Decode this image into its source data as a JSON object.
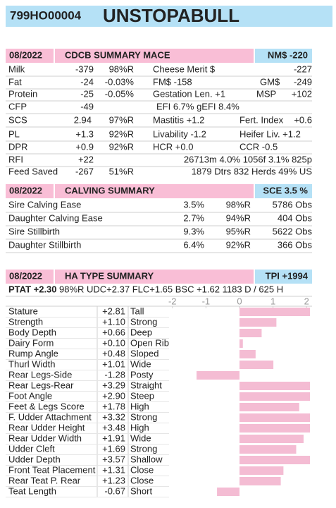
{
  "header": {
    "id": "799HO00004",
    "name": "UNSTOPABULL"
  },
  "cdcb": {
    "date": "08/2022",
    "title": "CDCB SUMMARY MACE",
    "badge": "NM$ -220",
    "rows": [
      [
        "Milk",
        "-379",
        "98%R",
        "Cheese Merit $",
        "-227"
      ],
      [
        "Fat",
        "-24",
        "-0.03%",
        "FM$ -158",
        "GM$",
        "-249"
      ],
      [
        "Protein",
        "-25",
        "-0.05%",
        "Gestation Len. +1",
        "MSP",
        "+102"
      ],
      [
        "CFP",
        "-49",
        "EFI  6.7%  gEFI  8.4%"
      ],
      [
        "SCS",
        "2.94",
        "97%R",
        "Mastitis  +1.2",
        "Fert. Index",
        "+0.6"
      ],
      [
        "PL",
        "+1.3",
        "92%R",
        "Livability  -1.2",
        "Heifer Liv.  +1.2"
      ],
      [
        "DPR",
        "+0.9",
        "92%R",
        "HCR  +0.0",
        "CCR  -0.5"
      ],
      [
        "RFI",
        "+22",
        "26713m  4.0%  1056f  3.1%  825p"
      ],
      [
        "Feed Saved",
        "-267",
        "51%R",
        "1879 Dtrs  832 Herds  49% US"
      ]
    ]
  },
  "calving": {
    "date": "08/2022",
    "title": "CALVING SUMMARY",
    "badge": "SCE 3.5 %",
    "rows": [
      [
        "Sire Calving Ease",
        "3.5%",
        "98%R",
        "5786 Obs"
      ],
      [
        "Daughter Calving Ease",
        "2.7%",
        "94%R",
        "404 Obs"
      ],
      [
        "Sire Stillbirth",
        "9.3%",
        "95%R",
        "5622 Obs"
      ],
      [
        "Daughter Stillbirth",
        "6.4%",
        "92%R",
        "366 Obs"
      ]
    ]
  },
  "type": {
    "date": "08/2022",
    "title": "HA TYPE SUMMARY",
    "badge": "TPI +1994",
    "ptat": "PTAT +2.30",
    "ptat_detail": "98%R  UDC+2.37  FLC+1.65  BSC +1.62  1183 D /  625 H",
    "chart": {
      "xlim": [
        -2.1,
        2.1
      ],
      "xticks": [
        -2,
        -1,
        0,
        1,
        2
      ],
      "color": "#f4bcd3",
      "traits": [
        "Stature",
        "Strength",
        "Body Depth",
        "Dairy Form",
        "Rump Angle",
        "Thurl Width",
        "Rear Legs-Side",
        "Rear Legs-Rear",
        "Foot Angle",
        "Feet & Legs Score",
        "F. Udder Attachment",
        "Rear Udder Height",
        "Rear Udder Width",
        "Udder Cleft",
        "Udder Depth",
        "Front Teat Placement",
        "Rear Teat P. Rear",
        "Teat Length"
      ],
      "values": [
        2.81,
        1.1,
        0.66,
        0.1,
        0.48,
        1.01,
        -1.28,
        3.29,
        2.9,
        1.78,
        3.32,
        3.48,
        1.91,
        1.69,
        3.57,
        1.31,
        1.23,
        -0.67
      ],
      "value_labels": [
        "+2.81",
        "+1.10",
        "+0.66",
        "+0.10",
        "+0.48",
        "+1.01",
        "-1.28",
        "+3.29",
        "+2.90",
        "+1.78",
        "+3.32",
        "+3.48",
        "+1.91",
        "+1.69",
        "+3.57",
        "+1.31",
        "+1.23",
        "-0.67"
      ],
      "descriptors": [
        "Tall",
        "Strong",
        "Deep",
        "Open Rib",
        "Sloped",
        "Wide",
        "Posty",
        "Straight",
        "Steep",
        "High",
        "Strong",
        "High",
        "Wide",
        "Strong",
        "Shallow",
        "Close",
        "Close",
        "Short"
      ]
    }
  }
}
